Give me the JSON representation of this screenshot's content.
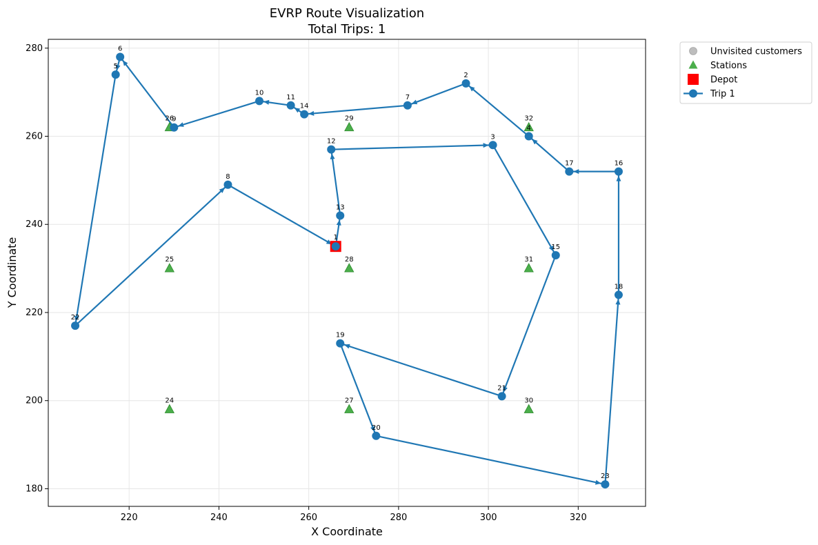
{
  "chart_data": {
    "type": "scatter",
    "title": "EVRP Route Visualization",
    "subtitle": "Total Trips: 1",
    "xlabel": "X Coordinate",
    "ylabel": "Y Coordinate",
    "xlim": [
      202,
      335
    ],
    "ylim": [
      176,
      282
    ],
    "xticks": [
      220,
      240,
      260,
      280,
      300,
      320
    ],
    "yticks": [
      180,
      200,
      220,
      240,
      260,
      280
    ],
    "grid": true,
    "legend_position": "outside-top-right",
    "colors": {
      "unvisited": "#bdbdbd",
      "station": "#2ca02c",
      "depot": "#ff0000",
      "trip": "#1f77b4"
    },
    "legend": [
      {
        "label": "Unvisited customers",
        "marker": "circle-gray"
      },
      {
        "label": "Stations",
        "marker": "triangle-green"
      },
      {
        "label": "Depot",
        "marker": "square-red"
      },
      {
        "label": "Trip 1",
        "marker": "line-blue"
      }
    ],
    "depot": {
      "label": "1",
      "x": 266,
      "y": 235
    },
    "stations": [
      {
        "label": "24",
        "x": 229,
        "y": 198
      },
      {
        "label": "25",
        "x": 229,
        "y": 230
      },
      {
        "label": "26",
        "x": 229,
        "y": 262
      },
      {
        "label": "27",
        "x": 269,
        "y": 198
      },
      {
        "label": "28",
        "x": 269,
        "y": 230
      },
      {
        "label": "29",
        "x": 269,
        "y": 262
      },
      {
        "label": "30",
        "x": 309,
        "y": 198
      },
      {
        "label": "31",
        "x": 309,
        "y": 230
      },
      {
        "label": "32",
        "x": 309,
        "y": 262
      }
    ],
    "customers": [
      {
        "label": "2",
        "x": 295,
        "y": 272
      },
      {
        "label": "3",
        "x": 301,
        "y": 258
      },
      {
        "label": "4",
        "x": 309,
        "y": 260
      },
      {
        "label": "5",
        "x": 217,
        "y": 274
      },
      {
        "label": "6",
        "x": 218,
        "y": 278
      },
      {
        "label": "7",
        "x": 282,
        "y": 267
      },
      {
        "label": "8",
        "x": 242,
        "y": 249
      },
      {
        "label": "9",
        "x": 230,
        "y": 262
      },
      {
        "label": "10",
        "x": 249,
        "y": 268
      },
      {
        "label": "11",
        "x": 256,
        "y": 267
      },
      {
        "label": "12",
        "x": 265,
        "y": 257
      },
      {
        "label": "13",
        "x": 267,
        "y": 242
      },
      {
        "label": "14",
        "x": 259,
        "y": 265
      },
      {
        "label": "15",
        "x": 315,
        "y": 233
      },
      {
        "label": "16",
        "x": 329,
        "y": 252
      },
      {
        "label": "17",
        "x": 318,
        "y": 252
      },
      {
        "label": "18",
        "x": 329,
        "y": 224
      },
      {
        "label": "19",
        "x": 267,
        "y": 213
      },
      {
        "label": "20",
        "x": 275,
        "y": 192
      },
      {
        "label": "21",
        "x": 303,
        "y": 201
      },
      {
        "label": "22",
        "x": 208,
        "y": 217
      },
      {
        "label": "23",
        "x": 326,
        "y": 181
      }
    ],
    "series": [
      {
        "name": "Trip 1",
        "route": [
          "1",
          "13",
          "12",
          "3",
          "15",
          "21",
          "19",
          "20",
          "23",
          "18",
          "16",
          "17",
          "4",
          "2",
          "7",
          "14",
          "11",
          "10",
          "9",
          "6",
          "5",
          "22",
          "8",
          "1"
        ]
      }
    ]
  }
}
